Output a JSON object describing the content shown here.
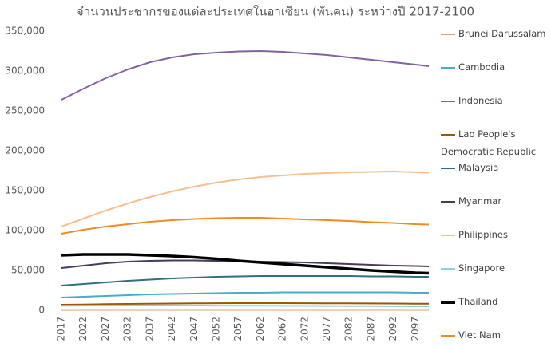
{
  "chart_data": {
    "type": "line",
    "title": "จำนวนประชากรของแต่ละประเทศในอาเซียน (พันคน) ระหว่างปี 2017-2100",
    "x": [
      2017,
      2022,
      2027,
      2032,
      2037,
      2042,
      2047,
      2052,
      2057,
      2062,
      2067,
      2072,
      2077,
      2082,
      2087,
      2092,
      2097,
      2100
    ],
    "xlim": [
      2017,
      2100
    ],
    "xticks": [
      2017,
      2022,
      2027,
      2032,
      2037,
      2042,
      2047,
      2052,
      2057,
      2062,
      2067,
      2072,
      2077,
      2082,
      2087,
      2092,
      2097
    ],
    "ylim": [
      0,
      350000
    ],
    "yticks": [
      0,
      {
        "value": 50000,
        "label": "50,000"
      },
      {
        "value": 100000,
        "label": "100,000"
      },
      {
        "value": 150000,
        "label": "150,000"
      },
      {
        "value": 200000,
        "label": "200,000"
      },
      {
        "value": 250000,
        "label": "250,000"
      },
      {
        "value": 300000,
        "label": "300,000"
      },
      {
        "value": 350000,
        "label": "350,000"
      }
    ],
    "grid": false,
    "legend": "right",
    "series": [
      {
        "name": "Brunei Darussalam",
        "color": "#e3a06c",
        "values": [
          400,
          450,
          470,
          490,
          500,
          510,
          520,
          520,
          520,
          510,
          510,
          500,
          500,
          490,
          480,
          480,
          470,
          470
        ]
      },
      {
        "name": "Cambodia",
        "color": "#4bacc6",
        "values": [
          16000,
          17000,
          18000,
          19000,
          20000,
          20500,
          21000,
          21500,
          22000,
          22000,
          22500,
          22500,
          22500,
          22500,
          22500,
          22500,
          22000,
          22000
        ]
      },
      {
        "name": "Indonesia",
        "color": "#8064a2",
        "values": [
          264000,
          278000,
          291000,
          302000,
          311000,
          317000,
          321000,
          323000,
          324500,
          325000,
          324000,
          322000,
          320000,
          317000,
          314000,
          311000,
          308000,
          306000
        ]
      },
      {
        "name": "Lao People's Democratic Republic",
        "color": "#9c5700",
        "values": [
          7000,
          7300,
          7700,
          8000,
          8300,
          8500,
          8700,
          8900,
          9000,
          9000,
          9000,
          8900,
          8800,
          8700,
          8600,
          8500,
          8300,
          8200
        ]
      },
      {
        "name": "Malaysia",
        "color": "#31707f",
        "values": [
          31000,
          33000,
          35000,
          37000,
          38500,
          40000,
          41000,
          42000,
          42500,
          43000,
          43000,
          43000,
          43000,
          43000,
          42500,
          42500,
          42000,
          42000
        ]
      },
      {
        "name": "Myanmar",
        "color": "#4a3b5c",
        "values": [
          53000,
          56000,
          59000,
          61000,
          62000,
          62500,
          62500,
          62000,
          61500,
          61000,
          60500,
          60000,
          59000,
          58000,
          57000,
          56000,
          55500,
          55000
        ]
      },
      {
        "name": "Philippines",
        "color": "#f5bf8e",
        "values": [
          105000,
          115000,
          125000,
          134000,
          142000,
          149000,
          155000,
          160000,
          164000,
          167000,
          169000,
          171000,
          172000,
          173000,
          173500,
          174000,
          173000,
          172500
        ]
      },
      {
        "name": "Singapore",
        "color": "#93cddd",
        "values": [
          5700,
          5900,
          6000,
          6100,
          6100,
          6100,
          6000,
          5900,
          5800,
          5700,
          5600,
          5500,
          5400,
          5300,
          5200,
          5100,
          5000,
          5000
        ]
      },
      {
        "name": "Thailand",
        "color": "#000000",
        "values": [
          69000,
          70000,
          70000,
          70000,
          69000,
          68000,
          66500,
          64500,
          62000,
          60000,
          58000,
          56000,
          54000,
          52000,
          50000,
          48500,
          47000,
          46500
        ]
      },
      {
        "name": "Viet Nam",
        "color": "#f08a24",
        "values": [
          96000,
          101000,
          105000,
          108000,
          111000,
          113000,
          114500,
          115500,
          116000,
          116000,
          115000,
          114000,
          113000,
          112000,
          110500,
          109500,
          108000,
          107500
        ]
      }
    ]
  }
}
